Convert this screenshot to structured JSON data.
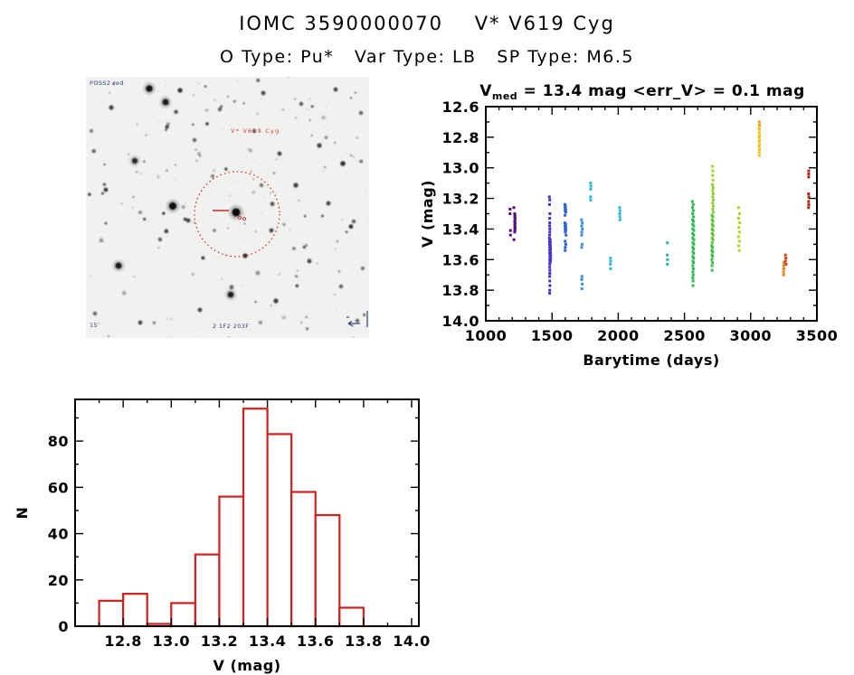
{
  "header": {
    "title": "IOMC 3590000070    V* V619 Cyg",
    "subtitle": "O Type: Pu*   Var Type: LB   SP Type: M6.5"
  },
  "finding_chart": {
    "target_label": "V* V619 Cyg",
    "smallprint_top_left": "POSS2 red",
    "smallprint_bottom_left": "15'",
    "smallprint_bottom_center": "2 1F2 203F",
    "marker_color": "#cc2222",
    "annotation_color": "#334477"
  },
  "chart_data": [
    {
      "type": "scatter",
      "title": {
        "pre": "V",
        "sub": "med",
        "post": " = 13.4 mag <err_V> = 0.1 mag"
      },
      "xlabel": "Barytime (days)",
      "ylabel": "V (mag)",
      "xlim": [
        1000,
        3500
      ],
      "ylim": [
        12.6,
        14.0
      ],
      "y_inverted": true,
      "grid": false,
      "xticks": [
        1000,
        1500,
        2000,
        2500,
        3000,
        3500
      ],
      "xminor_step": 100,
      "yticks": [
        12.6,
        12.8,
        13.0,
        13.2,
        13.4,
        13.6,
        13.8,
        14.0
      ],
      "yminor_step": 0.1,
      "clusters": [
        {
          "color": "#55117a",
          "pts": [
            [
              1183,
              13.27
            ],
            [
              1183,
              13.3
            ],
            [
              1186,
              13.41
            ],
            [
              1186,
              13.44
            ],
            [
              1212,
              13.26
            ],
            [
              1218,
              13.3
            ],
            [
              1220,
              13.31
            ],
            [
              1219,
              13.32
            ],
            [
              1221,
              13.33
            ],
            [
              1220,
              13.34
            ],
            [
              1218,
              13.35
            ],
            [
              1221,
              13.36
            ],
            [
              1219,
              13.37
            ],
            [
              1220,
              13.38
            ],
            [
              1221,
              13.39
            ],
            [
              1219,
              13.4
            ],
            [
              1220,
              13.41
            ],
            [
              1218,
              13.42
            ],
            [
              1213,
              13.47
            ]
          ]
        },
        {
          "color": "#4930c8",
          "pts": [
            [
              1480,
              13.19
            ],
            [
              1483,
              13.21
            ],
            [
              1481,
              13.24
            ],
            [
              1484,
              13.3
            ],
            [
              1482,
              13.33
            ],
            [
              1483,
              13.36
            ],
            [
              1482,
              13.38
            ],
            [
              1484,
              13.4
            ],
            [
              1483,
              13.42
            ],
            [
              1482,
              13.44
            ],
            [
              1480,
              13.46
            ],
            [
              1486,
              13.47
            ],
            [
              1481,
              13.48
            ],
            [
              1487,
              13.49
            ],
            [
              1482,
              13.5
            ],
            [
              1488,
              13.51
            ],
            [
              1483,
              13.52
            ],
            [
              1489,
              13.53
            ],
            [
              1482,
              13.54
            ],
            [
              1488,
              13.55
            ],
            [
              1483,
              13.56
            ],
            [
              1490,
              13.57
            ],
            [
              1484,
              13.58
            ],
            [
              1490,
              13.59
            ],
            [
              1483,
              13.6
            ],
            [
              1489,
              13.61
            ],
            [
              1484,
              13.62
            ],
            [
              1483,
              13.63
            ],
            [
              1482,
              13.65
            ],
            [
              1484,
              13.67
            ],
            [
              1483,
              13.69
            ],
            [
              1482,
              13.71
            ],
            [
              1483,
              13.74
            ],
            [
              1484,
              13.77
            ],
            [
              1483,
              13.8
            ],
            [
              1482,
              13.82
            ]
          ]
        },
        {
          "color": "#2a62d8",
          "pts": [
            [
              1597,
              13.24
            ],
            [
              1602,
              13.25
            ],
            [
              1598,
              13.26
            ],
            [
              1603,
              13.27
            ],
            [
              1599,
              13.28
            ],
            [
              1604,
              13.29
            ],
            [
              1598,
              13.31
            ],
            [
              1597,
              13.36
            ],
            [
              1603,
              13.37
            ],
            [
              1598,
              13.38
            ],
            [
              1604,
              13.39
            ],
            [
              1599,
              13.4
            ],
            [
              1605,
              13.41
            ],
            [
              1600,
              13.42
            ],
            [
              1606,
              13.44
            ],
            [
              1599,
              13.48
            ],
            [
              1604,
              13.5
            ],
            [
              1600,
              13.52
            ],
            [
              1599,
              13.54
            ]
          ]
        },
        {
          "color": "#3c8ed6",
          "pts": [
            [
              1723,
              13.34
            ],
            [
              1728,
              13.36
            ],
            [
              1724,
              13.38
            ],
            [
              1729,
              13.4
            ],
            [
              1725,
              13.42
            ],
            [
              1724,
              13.44
            ],
            [
              1727,
              13.5
            ],
            [
              1724,
              13.52
            ],
            [
              1726,
              13.71
            ],
            [
              1724,
              13.73
            ],
            [
              1727,
              13.76
            ],
            [
              1725,
              13.79
            ]
          ]
        },
        {
          "color": "#2cb6dc",
          "pts": [
            [
              1791,
              13.1
            ],
            [
              1793,
              13.12
            ],
            [
              1792,
              13.14
            ],
            [
              1791,
              13.19
            ],
            [
              1792,
              13.21
            ]
          ]
        },
        {
          "color": "#2cb6dc",
          "pts": [
            [
              1941,
              13.59
            ],
            [
              1943,
              13.61
            ],
            [
              1941,
              13.63
            ],
            [
              1942,
              13.66
            ]
          ]
        },
        {
          "color": "#2cb6dc",
          "pts": [
            [
              2011,
              13.26
            ],
            [
              2013,
              13.28
            ],
            [
              2011,
              13.3
            ],
            [
              2012,
              13.32
            ],
            [
              2013,
              13.34
            ]
          ]
        },
        {
          "color": "#26b89e",
          "pts": [
            [
              2371,
              13.49
            ],
            [
              2370,
              13.57
            ],
            [
              2372,
              13.6
            ],
            [
              2371,
              13.63
            ]
          ]
        },
        {
          "color": "#2eba50",
          "pts": [
            [
              2560,
              13.22
            ],
            [
              2566,
              13.24
            ],
            [
              2561,
              13.26
            ],
            [
              2567,
              13.28
            ],
            [
              2562,
              13.3
            ],
            [
              2568,
              13.32
            ],
            [
              2561,
              13.34
            ],
            [
              2569,
              13.35
            ],
            [
              2562,
              13.37
            ],
            [
              2570,
              13.38
            ],
            [
              2563,
              13.4
            ],
            [
              2571,
              13.41
            ],
            [
              2562,
              13.43
            ],
            [
              2570,
              13.44
            ],
            [
              2563,
              13.46
            ],
            [
              2571,
              13.47
            ],
            [
              2564,
              13.49
            ],
            [
              2570,
              13.5
            ],
            [
              2563,
              13.52
            ],
            [
              2569,
              13.53
            ],
            [
              2564,
              13.55
            ],
            [
              2570,
              13.56
            ],
            [
              2563,
              13.58
            ],
            [
              2569,
              13.59
            ],
            [
              2564,
              13.61
            ],
            [
              2568,
              13.62
            ],
            [
              2563,
              13.64
            ],
            [
              2567,
              13.66
            ],
            [
              2564,
              13.68
            ],
            [
              2566,
              13.7
            ],
            [
              2563,
              13.72
            ],
            [
              2565,
              13.74
            ],
            [
              2564,
              13.77
            ]
          ]
        },
        {
          "color": "#a4d42a",
          "pts": [
            [
              2712,
              12.99
            ],
            [
              2714,
              13.02
            ],
            [
              2713,
              13.05
            ],
            [
              2715,
              13.08
            ]
          ]
        },
        {
          "color": "#8ccc30",
          "pts": [
            [
              2712,
              13.11
            ],
            [
              2716,
              13.13
            ],
            [
              2713,
              13.15
            ],
            [
              2717,
              13.17
            ],
            [
              2714,
              13.19
            ],
            [
              2718,
              13.21
            ],
            [
              2713,
              13.23
            ],
            [
              2717,
              13.25
            ],
            [
              2714,
              13.27
            ],
            [
              2718,
              13.29
            ]
          ]
        },
        {
          "color": "#60c43a",
          "pts": [
            [
              2708,
              13.31
            ],
            [
              2714,
              13.32
            ],
            [
              2709,
              13.34
            ],
            [
              2715,
              13.35
            ],
            [
              2710,
              13.37
            ],
            [
              2716,
              13.38
            ],
            [
              2709,
              13.4
            ],
            [
              2715,
              13.41
            ],
            [
              2710,
              13.43
            ],
            [
              2716,
              13.44
            ],
            [
              2709,
              13.46
            ],
            [
              2715,
              13.47
            ],
            [
              2710,
              13.49
            ]
          ]
        },
        {
          "color": "#42bc46",
          "pts": [
            [
              2706,
              13.51
            ],
            [
              2712,
              13.52
            ],
            [
              2707,
              13.54
            ],
            [
              2713,
              13.55
            ],
            [
              2708,
              13.57
            ],
            [
              2712,
              13.58
            ],
            [
              2707,
              13.6
            ],
            [
              2711,
              13.62
            ],
            [
              2708,
              13.64
            ],
            [
              2709,
              13.67
            ]
          ]
        },
        {
          "color": "#b4d41e",
          "pts": [
            [
              2908,
              13.26
            ],
            [
              2916,
              13.3
            ],
            [
              2909,
              13.33
            ],
            [
              2917,
              13.36
            ],
            [
              2910,
              13.39
            ],
            [
              2916,
              13.42
            ],
            [
              2909,
              13.45
            ],
            [
              2915,
              13.48
            ],
            [
              2910,
              13.51
            ],
            [
              2914,
              13.54
            ]
          ]
        },
        {
          "color": "#f09c18",
          "pts": [
            [
              3065,
              12.7
            ],
            [
              3066,
              12.72
            ]
          ]
        },
        {
          "color": "#f2c41c",
          "pts": [
            [
              3063,
              12.74
            ],
            [
              3066,
              12.75
            ],
            [
              3064,
              12.77
            ],
            [
              3067,
              12.79
            ],
            [
              3063,
              12.8
            ],
            [
              3066,
              12.82
            ],
            [
              3064,
              12.83
            ],
            [
              3067,
              12.85
            ],
            [
              3063,
              12.86
            ],
            [
              3066,
              12.88
            ],
            [
              3064,
              12.9
            ],
            [
              3065,
              12.92
            ]
          ]
        },
        {
          "color": "#e8821a",
          "pts": [
            [
              3249,
              13.7
            ],
            [
              3248,
              13.68
            ],
            [
              3250,
              13.66
            ],
            [
              3249,
              13.64
            ],
            [
              3251,
              13.62
            ]
          ]
        },
        {
          "color": "#cc4418",
          "pts": [
            [
              3262,
              13.57
            ],
            [
              3266,
              13.59
            ],
            [
              3262,
              13.61
            ],
            [
              3267,
              13.63
            ]
          ]
        },
        {
          "color": "#b42412",
          "pts": [
            [
              3438,
              13.02
            ],
            [
              3438,
              13.04
            ],
            [
              3438,
              13.06
            ],
            [
              3437,
              13.17
            ],
            [
              3439,
              13.19
            ],
            [
              3437,
              13.22
            ],
            [
              3439,
              13.24
            ],
            [
              3437,
              13.26
            ]
          ]
        }
      ]
    },
    {
      "type": "bar",
      "title": "",
      "xlabel": "V (mag)",
      "ylabel": "N",
      "xlim": [
        12.6,
        14.03
      ],
      "ylim": [
        0,
        98
      ],
      "grid": false,
      "bar_color": "#d02020",
      "bin_start": 12.7,
      "bin_width": 0.1,
      "categories": [
        "12.7-12.8",
        "12.8-12.9",
        "12.9-13.0",
        "13.0-13.1",
        "13.1-13.2",
        "13.2-13.3",
        "13.3-13.4",
        "13.4-13.5",
        "13.5-13.6",
        "13.6-13.7",
        "13.7-13.8"
      ],
      "values": [
        11,
        14,
        1,
        10,
        31,
        56,
        94,
        83,
        58,
        48,
        8
      ],
      "xticks": [
        12.8,
        13.0,
        13.2,
        13.4,
        13.6,
        13.8,
        14.0
      ],
      "xminor_step": 0.1,
      "yticks": [
        0,
        20,
        40,
        60,
        80
      ],
      "yminor_step": 10
    }
  ]
}
